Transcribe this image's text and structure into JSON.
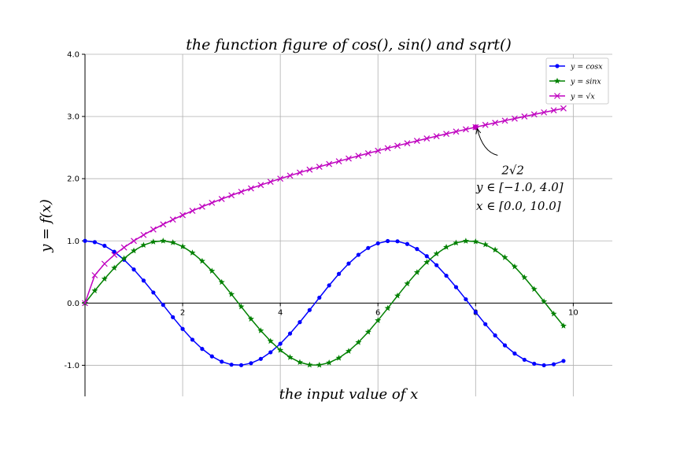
{
  "chart_data": {
    "type": "line",
    "title": "the function figure of cos(), sin() and sqrt()",
    "xlabel": "the input value of x",
    "ylabel": "y = f(x)",
    "xlim": [
      0,
      10.8
    ],
    "ylim": [
      -1.5,
      4.0
    ],
    "grid": true,
    "legend_position": "top-right",
    "x_ticks": [
      2,
      4,
      6,
      8,
      10
    ],
    "x_tick_labels": [
      "2",
      "4",
      "6",
      "8",
      "10"
    ],
    "y_ticks": [
      -1.0,
      0.0,
      1.0,
      2.0,
      3.0,
      4.0
    ],
    "y_tick_labels": [
      "-1.0",
      "0.0",
      "1.0",
      "2.0",
      "3.0",
      "4.0"
    ],
    "x": [
      0.0,
      0.2,
      0.4,
      0.6,
      0.8,
      1.0,
      1.2,
      1.4,
      1.6,
      1.8,
      2.0,
      2.2,
      2.4,
      2.6,
      2.8,
      3.0,
      3.2,
      3.4,
      3.6,
      3.8,
      4.0,
      4.2,
      4.4,
      4.6,
      4.8,
      5.0,
      5.2,
      5.4,
      5.6,
      5.8,
      6.0,
      6.2,
      6.4,
      6.6,
      6.8,
      7.0,
      7.2,
      7.4,
      7.6,
      7.8,
      8.0,
      8.2,
      8.4,
      8.6,
      8.8,
      9.0,
      9.2,
      9.4,
      9.6,
      9.8
    ],
    "series": [
      {
        "name": "y = cosx",
        "color": "#0000ff",
        "marker": "dot",
        "values": [
          1.0,
          0.98,
          0.921,
          0.825,
          0.697,
          0.54,
          0.362,
          0.17,
          -0.029,
          -0.227,
          -0.416,
          -0.589,
          -0.737,
          -0.857,
          -0.942,
          -0.99,
          -0.998,
          -0.967,
          -0.897,
          -0.791,
          -0.654,
          -0.49,
          -0.307,
          -0.112,
          0.087,
          0.284,
          0.469,
          0.635,
          0.776,
          0.886,
          0.96,
          0.997,
          0.993,
          0.95,
          0.869,
          0.754,
          0.609,
          0.44,
          0.256,
          0.061,
          -0.146,
          -0.339,
          -0.52,
          -0.68,
          -0.811,
          -0.911,
          -0.975,
          -1.0,
          -0.984,
          -0.93
        ]
      },
      {
        "name": "y = sinx",
        "color": "#008000",
        "marker": "star",
        "values": [
          0.0,
          0.199,
          0.389,
          0.565,
          0.717,
          0.841,
          0.932,
          0.985,
          1.0,
          0.974,
          0.909,
          0.808,
          0.675,
          0.516,
          0.335,
          0.141,
          -0.058,
          -0.256,
          -0.443,
          -0.612,
          -0.757,
          -0.872,
          -0.952,
          -0.994,
          -0.996,
          -0.959,
          -0.883,
          -0.773,
          -0.631,
          -0.465,
          -0.279,
          -0.083,
          0.117,
          0.312,
          0.494,
          0.657,
          0.794,
          0.899,
          0.968,
          0.998,
          0.989,
          0.941,
          0.855,
          0.734,
          0.585,
          0.412,
          0.223,
          0.025,
          -0.174,
          -0.366
        ]
      },
      {
        "name": "y = √x",
        "color": "#bf00bf",
        "marker": "x",
        "values": [
          0.0,
          0.447,
          0.632,
          0.775,
          0.894,
          1.0,
          1.095,
          1.183,
          1.265,
          1.342,
          1.414,
          1.483,
          1.549,
          1.612,
          1.673,
          1.732,
          1.789,
          1.844,
          1.897,
          1.949,
          2.0,
          2.049,
          2.098,
          2.145,
          2.191,
          2.236,
          2.28,
          2.324,
          2.366,
          2.408,
          2.449,
          2.49,
          2.53,
          2.569,
          2.608,
          2.646,
          2.683,
          2.72,
          2.757,
          2.793,
          2.828,
          2.864,
          2.898,
          2.933,
          2.966,
          3.0,
          3.033,
          3.066,
          3.098,
          3.13
        ]
      }
    ],
    "annotations": [
      {
        "text": "2√2",
        "point": [
          8.0,
          2.828
        ],
        "text_pos": [
          8.5,
          2.3
        ]
      }
    ],
    "range_text": {
      "line1": "y ∈ [−1.0,  4.0]",
      "line2": "x ∈ [0.0,  10.0]"
    }
  }
}
